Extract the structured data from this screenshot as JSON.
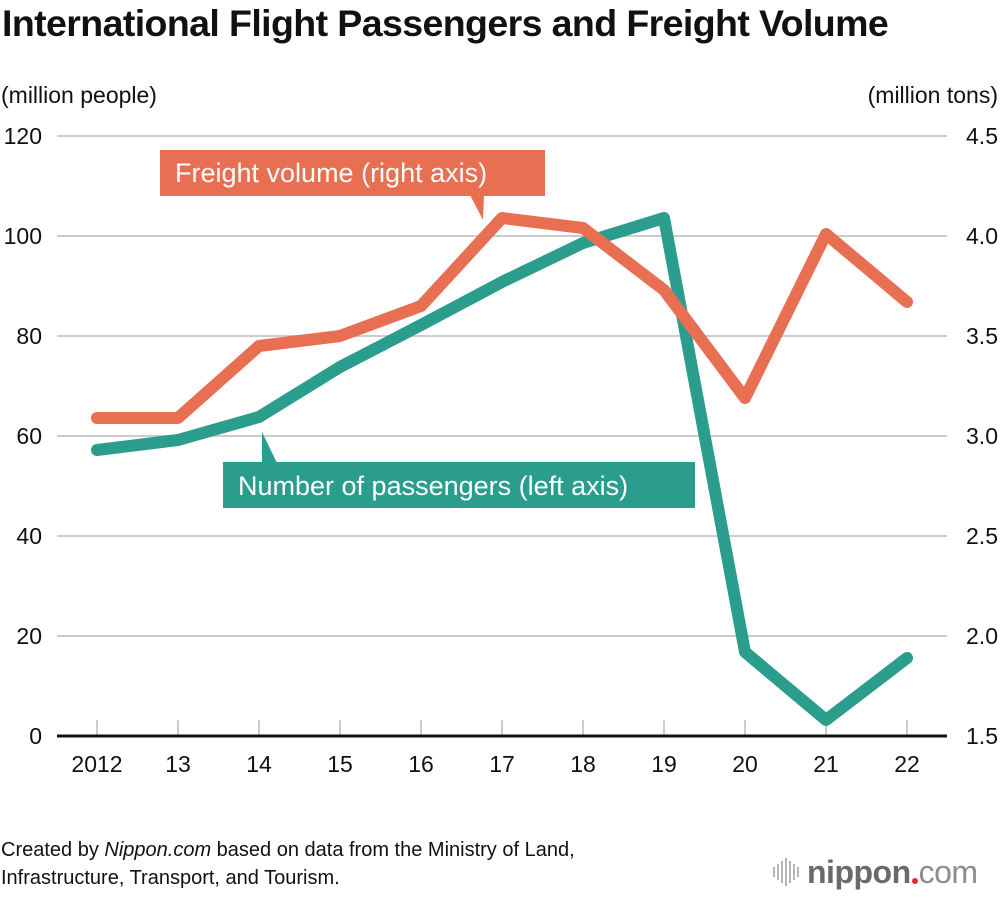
{
  "chart_data": {
    "type": "line",
    "title": "International Flight Passengers and Freight Volume",
    "categories": [
      "2012",
      "13",
      "14",
      "15",
      "16",
      "17",
      "18",
      "19",
      "20",
      "21",
      "22"
    ],
    "years": [
      2012,
      2013,
      2014,
      2015,
      2016,
      2017,
      2018,
      2019,
      2020,
      2021,
      2022
    ],
    "left_axis": {
      "label": "(million people)",
      "ylim": [
        0,
        120
      ],
      "ticks": [
        "0",
        "20",
        "40",
        "60",
        "80",
        "100",
        "120"
      ],
      "tick_values": [
        0,
        20,
        40,
        60,
        80,
        100,
        120
      ]
    },
    "right_axis": {
      "label": "(million tons)",
      "ylim": [
        1.5,
        4.5
      ],
      "ticks": [
        "1.5",
        "2.0",
        "2.5",
        "3.0",
        "3.5",
        "4.0",
        "4.5"
      ],
      "tick_values": [
        1.5,
        2.0,
        2.5,
        3.0,
        3.5,
        4.0,
        4.5
      ]
    },
    "grid": true,
    "series": [
      {
        "name": "Number of passengers (left axis)",
        "axis": "left",
        "color": "#2a9d8c",
        "values": [
          57.2,
          59.2,
          63.8,
          73.8,
          82.2,
          90.8,
          98.6,
          103.6,
          16.8,
          3.2,
          15.6
        ]
      },
      {
        "name": "Freight volume (right axis)",
        "axis": "right",
        "color": "#e86f52",
        "values": [
          3.09,
          3.09,
          3.45,
          3.5,
          3.65,
          4.09,
          4.04,
          3.73,
          3.19,
          4.01,
          3.67
        ]
      }
    ],
    "annotations": [
      {
        "text": "Freight volume (right axis)",
        "series": "freight",
        "points_to": "17"
      },
      {
        "text": "Number of passengers (left axis)",
        "series": "passengers",
        "points_to": "14"
      }
    ]
  },
  "footer": {
    "prefix": "Created by ",
    "source_name": "Nippon.com",
    "suffix_line1": " based on data from the Ministry of Land,",
    "line2": "Infrastructure, Transport, and Tourism."
  },
  "logo": {
    "name": "nippon",
    "tld": "com"
  },
  "colors": {
    "passengers": "#2a9d8c",
    "freight": "#e86f52",
    "grid": "#cccccc",
    "axis": "#111111"
  }
}
